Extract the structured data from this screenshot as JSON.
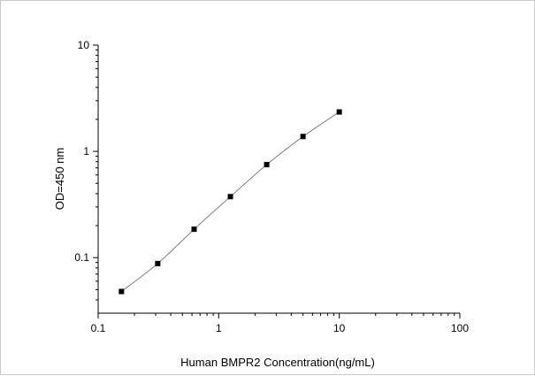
{
  "chart_data": {
    "type": "scatter",
    "title": "",
    "xlabel": "Human BMPR2 Concentration(ng/mL)",
    "ylabel": "OD=450 nm",
    "x_scale": "log",
    "y_scale": "log",
    "xlim": [
      0.1,
      100
    ],
    "ylim": [
      0.03,
      10
    ],
    "x_ticks": [
      "0.1",
      "1",
      "10",
      "100"
    ],
    "y_ticks": [
      "0.1",
      "1",
      "10"
    ],
    "grid": false,
    "legend": "none",
    "series": [
      {
        "x": [
          0.156,
          0.312,
          0.625,
          1.25,
          2.5,
          5,
          10
        ],
        "y": [
          0.048,
          0.088,
          0.185,
          0.375,
          0.75,
          1.38,
          2.35
        ],
        "marker": "square",
        "line": "smooth",
        "marker_color": "#000000",
        "line_color": "#808080"
      }
    ]
  }
}
